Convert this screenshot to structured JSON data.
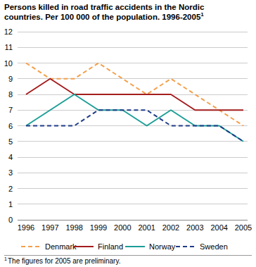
{
  "chart_data": {
    "type": "line",
    "title": "Persons killed in road traffic accidents in the Nordic countries. Per 100 000 of the population. 1996-2005",
    "footnote": {
      "mark": "1",
      "text": "The figures for 2005 are preliminary."
    },
    "categories": [
      "1996",
      "1997",
      "1998",
      "1999",
      "2000",
      "2001",
      "2002",
      "2003",
      "2004",
      "2005"
    ],
    "series": [
      {
        "name": "Denmark",
        "color": "#f4a04c",
        "line_style": "dashed",
        "values": [
          10,
          9,
          9,
          10,
          9,
          8,
          9,
          8,
          7,
          6
        ]
      },
      {
        "name": "Finland",
        "color": "#a51d1d",
        "line_style": "solid",
        "values": [
          8,
          9,
          8,
          8,
          8,
          8,
          8,
          7,
          7,
          7
        ]
      },
      {
        "name": "Norway",
        "color": "#1c9e97",
        "line_style": "solid",
        "values": [
          6,
          7,
          8,
          7,
          7,
          6,
          7,
          6,
          6,
          5
        ]
      },
      {
        "name": "Sweden",
        "color": "#1f3c88",
        "line_style": "dashed",
        "values": [
          6,
          6,
          6,
          7,
          7,
          7,
          6,
          6,
          6,
          5
        ]
      }
    ],
    "ylim": [
      0,
      12
    ],
    "yticks": [
      0,
      1,
      2,
      3,
      4,
      5,
      6,
      7,
      8,
      9,
      10,
      11,
      12
    ],
    "grid": true,
    "legend": "bottom"
  }
}
